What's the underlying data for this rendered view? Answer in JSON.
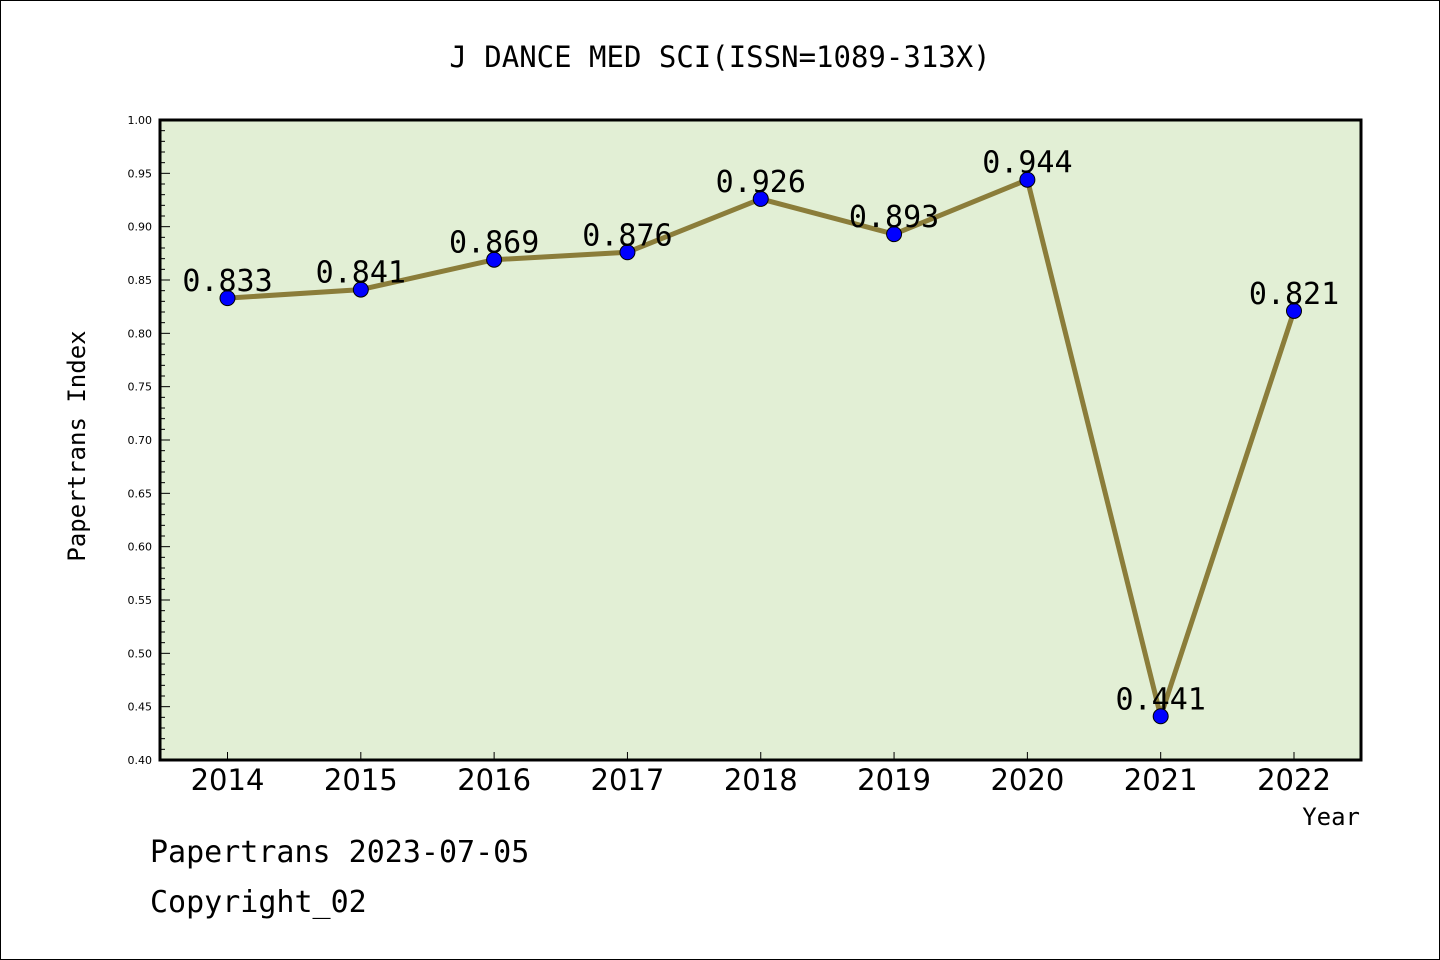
{
  "chart_data": {
    "type": "line",
    "title": "J DANCE MED SCI(ISSN=1089-313X)",
    "xlabel": "Year",
    "ylabel": "Papertrans Index",
    "categories": [
      "2014",
      "2015",
      "2016",
      "2017",
      "2018",
      "2019",
      "2020",
      "2021",
      "2022"
    ],
    "series": [
      {
        "values": [
          0.833,
          0.841,
          0.869,
          0.876,
          0.926,
          0.893,
          0.944,
          0.441,
          0.821
        ],
        "labels": [
          "0.833",
          "0.841",
          "0.869",
          "0.876",
          "0.926",
          "0.893",
          "0.944",
          "0.441",
          "0.821"
        ]
      }
    ],
    "ylim": [
      0.4,
      1.0
    ],
    "yticks": [
      "0.40",
      "0.45",
      "0.50",
      "0.55",
      "0.60",
      "0.65",
      "0.70",
      "0.75",
      "0.80",
      "0.85",
      "0.90",
      "0.95",
      "1.00"
    ],
    "grid": false,
    "legend": "none",
    "colors": {
      "plot_background": "#e2efd5",
      "line": "#8b7d3a",
      "marker": "#0000ff"
    }
  },
  "footer": {
    "source": "Papertrans 2023-07-05",
    "copyright": "Copyright_02"
  }
}
